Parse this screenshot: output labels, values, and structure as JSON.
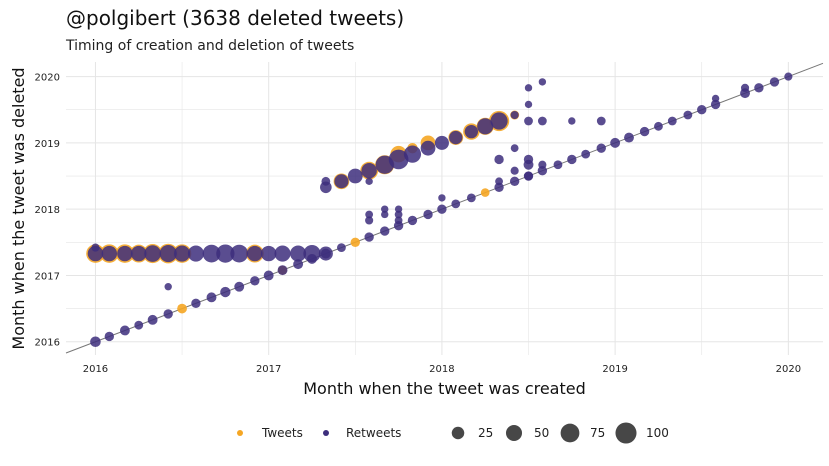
{
  "title": "@polgibert (3638 deleted tweets)",
  "subtitle": "Timing of creation and deletion of tweets",
  "colors": {
    "tweets": "#F5A623",
    "retweets": "#3D2E7C",
    "grid": "#e5e5e5",
    "diag": "#777777"
  },
  "chart_data": {
    "type": "scatter",
    "xlabel": "Month when the tweet was created",
    "ylabel": "Month when the tweet was deleted",
    "xlim": [
      2015.83,
      2020.2
    ],
    "ylim": [
      2015.8,
      2020.22
    ],
    "xticks": [
      "2016",
      "2017",
      "2018",
      "2019",
      "2020"
    ],
    "yticks": [
      "2016",
      "2017",
      "2018",
      "2019",
      "2020"
    ],
    "grid": true,
    "reference_line": "y = x",
    "legend": {
      "position": "bottom",
      "series": [
        "Tweets",
        "Retweets"
      ],
      "sizes": [
        {
          "label": "25",
          "value": 25
        },
        {
          "label": "50",
          "value": 50
        },
        {
          "label": "75",
          "value": 75
        },
        {
          "label": "100",
          "value": 100
        }
      ]
    },
    "series": [
      {
        "name": "Tweets",
        "points": [
          [
            2016.0,
            2017.33,
            55
          ],
          [
            2016.08,
            2017.33,
            55
          ],
          [
            2016.17,
            2017.33,
            55
          ],
          [
            2016.25,
            2017.33,
            50
          ],
          [
            2016.33,
            2017.33,
            60
          ],
          [
            2016.42,
            2017.33,
            65
          ],
          [
            2016.5,
            2017.33,
            55
          ],
          [
            2016.92,
            2017.33,
            50
          ],
          [
            2016.5,
            2016.5,
            8
          ],
          [
            2017.08,
            2017.08,
            6
          ],
          [
            2017.5,
            2017.5,
            7
          ],
          [
            2017.42,
            2018.42,
            35
          ],
          [
            2017.58,
            2018.58,
            50
          ],
          [
            2017.67,
            2018.67,
            60
          ],
          [
            2017.75,
            2018.83,
            40
          ],
          [
            2017.83,
            2018.92,
            10
          ],
          [
            2017.92,
            2019.0,
            30
          ],
          [
            2018.08,
            2019.08,
            30
          ],
          [
            2018.17,
            2019.17,
            40
          ],
          [
            2018.25,
            2019.25,
            45
          ],
          [
            2018.33,
            2019.33,
            70
          ],
          [
            2018.42,
            2019.42,
            6
          ],
          [
            2018.25,
            2018.25,
            5
          ]
        ]
      },
      {
        "name": "Retweets",
        "points": [
          [
            2016.0,
            2017.33,
            45
          ],
          [
            2016.08,
            2017.33,
            45
          ],
          [
            2016.17,
            2017.33,
            45
          ],
          [
            2016.25,
            2017.33,
            45
          ],
          [
            2016.33,
            2017.33,
            55
          ],
          [
            2016.42,
            2017.33,
            60
          ],
          [
            2016.5,
            2017.33,
            50
          ],
          [
            2016.58,
            2017.33,
            50
          ],
          [
            2016.67,
            2017.33,
            65
          ],
          [
            2016.75,
            2017.33,
            70
          ],
          [
            2016.83,
            2017.33,
            65
          ],
          [
            2016.92,
            2017.33,
            45
          ],
          [
            2017.0,
            2017.33,
            45
          ],
          [
            2017.08,
            2017.33,
            50
          ],
          [
            2017.17,
            2017.33,
            50
          ],
          [
            2017.25,
            2017.33,
            60
          ],
          [
            2017.33,
            2017.33,
            35
          ],
          [
            2016.0,
            2017.42,
            6
          ],
          [
            2016.0,
            2016.0,
            15
          ],
          [
            2016.08,
            2016.08,
            10
          ],
          [
            2016.17,
            2016.17,
            12
          ],
          [
            2016.25,
            2016.25,
            8
          ],
          [
            2016.33,
            2016.33,
            12
          ],
          [
            2016.42,
            2016.42,
            10
          ],
          [
            2016.58,
            2016.58,
            10
          ],
          [
            2016.67,
            2016.67,
            12
          ],
          [
            2016.75,
            2016.75,
            14
          ],
          [
            2016.83,
            2016.83,
            12
          ],
          [
            2016.92,
            2016.92,
            10
          ],
          [
            2017.0,
            2017.0,
            12
          ],
          [
            2017.08,
            2017.08,
            12
          ],
          [
            2017.17,
            2017.17,
            12
          ],
          [
            2017.25,
            2017.25,
            12
          ],
          [
            2017.33,
            2017.33,
            12
          ],
          [
            2017.42,
            2017.42,
            8
          ],
          [
            2017.58,
            2017.58,
            10
          ],
          [
            2017.67,
            2017.67,
            10
          ],
          [
            2017.75,
            2017.75,
            10
          ],
          [
            2017.83,
            2017.83,
            10
          ],
          [
            2017.92,
            2017.92,
            10
          ],
          [
            2018.0,
            2018.0,
            10
          ],
          [
            2018.08,
            2018.08,
            8
          ],
          [
            2018.17,
            2018.17,
            8
          ],
          [
            2018.33,
            2018.33,
            10
          ],
          [
            2018.42,
            2018.42,
            10
          ],
          [
            2018.5,
            2018.5,
            10
          ],
          [
            2018.58,
            2018.58,
            10
          ],
          [
            2018.67,
            2018.67,
            8
          ],
          [
            2018.75,
            2018.75,
            10
          ],
          [
            2018.83,
            2018.83,
            8
          ],
          [
            2018.92,
            2018.92,
            10
          ],
          [
            2019.0,
            2019.0,
            12
          ],
          [
            2019.08,
            2019.08,
            12
          ],
          [
            2019.17,
            2019.17,
            10
          ],
          [
            2019.25,
            2019.25,
            8
          ],
          [
            2019.33,
            2019.33,
            8
          ],
          [
            2019.42,
            2019.42,
            8
          ],
          [
            2019.5,
            2019.5,
            10
          ],
          [
            2019.58,
            2019.58,
            10
          ],
          [
            2019.75,
            2019.75,
            12
          ],
          [
            2019.83,
            2019.83,
            10
          ],
          [
            2019.92,
            2019.92,
            10
          ],
          [
            2020.0,
            2020.0,
            6
          ],
          [
            2016.42,
            2016.83,
            4
          ],
          [
            2017.33,
            2018.33,
            20
          ],
          [
            2017.33,
            2018.42,
            8
          ],
          [
            2017.42,
            2018.42,
            35
          ],
          [
            2017.5,
            2018.5,
            40
          ],
          [
            2017.58,
            2018.58,
            45
          ],
          [
            2017.67,
            2018.67,
            70
          ],
          [
            2017.75,
            2018.75,
            85
          ],
          [
            2017.83,
            2018.83,
            60
          ],
          [
            2017.92,
            2018.92,
            40
          ],
          [
            2018.0,
            2019.0,
            35
          ],
          [
            2018.08,
            2019.08,
            30
          ],
          [
            2018.17,
            2019.17,
            30
          ],
          [
            2018.25,
            2019.25,
            50
          ],
          [
            2018.33,
            2019.33,
            60
          ],
          [
            2018.42,
            2019.42,
            6
          ],
          [
            2017.58,
            2018.42,
            4
          ],
          [
            2018.0,
            2018.17,
            4
          ],
          [
            2017.58,
            2017.83,
            6
          ],
          [
            2017.58,
            2017.92,
            5
          ],
          [
            2017.67,
            2017.92,
            4
          ],
          [
            2017.67,
            2018.0,
            4
          ],
          [
            2017.75,
            2017.92,
            5
          ],
          [
            2017.75,
            2018.0,
            4
          ],
          [
            2017.75,
            2017.83,
            5
          ],
          [
            2018.33,
            2018.75,
            10
          ],
          [
            2018.42,
            2018.92,
            5
          ],
          [
            2018.5,
            2018.75,
            10
          ],
          [
            2018.5,
            2018.67,
            12
          ],
          [
            2018.58,
            2018.67,
            6
          ],
          [
            2018.5,
            2018.5,
            8
          ],
          [
            2018.42,
            2018.58,
            6
          ],
          [
            2018.33,
            2018.42,
            5
          ],
          [
            2018.5,
            2019.83,
            4
          ],
          [
            2018.58,
            2019.92,
            4
          ],
          [
            2018.5,
            2019.33,
            8
          ],
          [
            2018.58,
            2019.33,
            8
          ],
          [
            2018.75,
            2019.33,
            4
          ],
          [
            2018.92,
            2019.33,
            8
          ],
          [
            2018.5,
            2019.58,
            4
          ],
          [
            2019.58,
            2019.67,
            4
          ],
          [
            2019.75,
            2019.83,
            6
          ]
        ]
      }
    ]
  }
}
